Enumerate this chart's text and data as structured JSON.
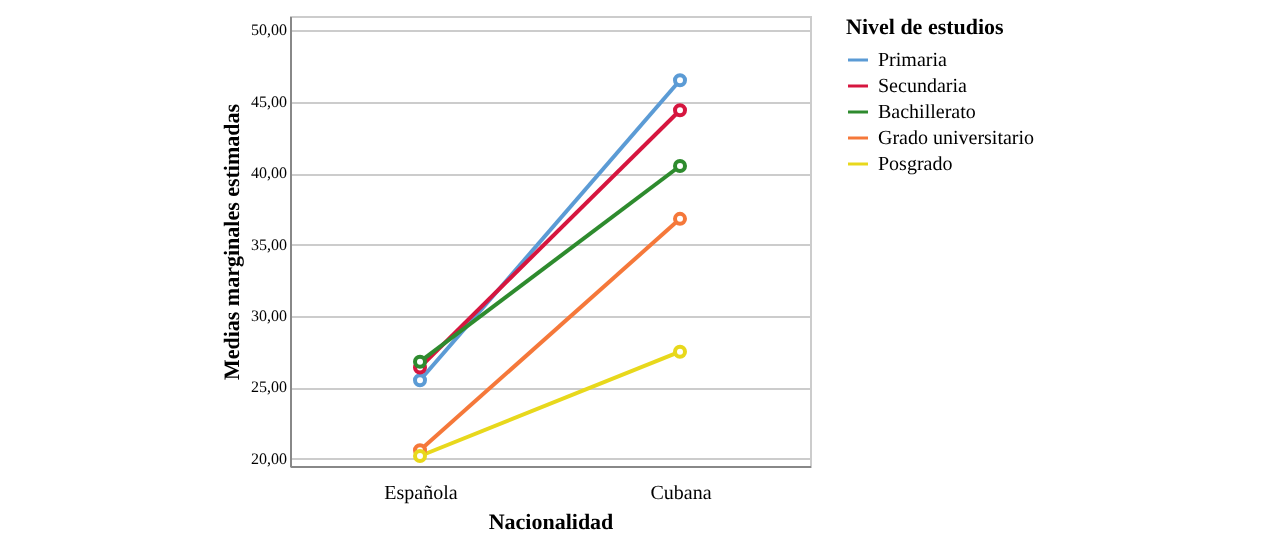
{
  "chart_data": {
    "type": "line",
    "xlabel": "Nacionalidad",
    "ylabel": "Medias marginales estimadas",
    "legend_title": "Nivel de estudios",
    "categories": [
      "Española",
      "Cubana"
    ],
    "series": [
      {
        "name": "Primaria",
        "color": "#5b9bd5",
        "values": [
          25.5,
          46.5
        ]
      },
      {
        "name": "Secundaria",
        "color": "#d6163f",
        "values": [
          26.4,
          44.4
        ]
      },
      {
        "name": "Bachillerato",
        "color": "#2e8b2e",
        "values": [
          26.8,
          40.5
        ]
      },
      {
        "name": "Grado universitario",
        "color": "#f5783a",
        "values": [
          20.6,
          36.8
        ]
      },
      {
        "name": "Posgrado",
        "color": "#e8d81c",
        "values": [
          20.2,
          27.5
        ]
      }
    ],
    "ylim": [
      19.5,
      51
    ],
    "yticks": [
      {
        "value": 20,
        "label": "20,00"
      },
      {
        "value": 25,
        "label": "25,00"
      },
      {
        "value": 30,
        "label": "30,00"
      },
      {
        "value": 35,
        "label": "35,00"
      },
      {
        "value": 40,
        "label": "40,00"
      },
      {
        "value": 45,
        "label": "45,00"
      },
      {
        "value": 50,
        "label": "50,00"
      }
    ],
    "grid": "y",
    "legend": "top right",
    "marker": "circle",
    "line_style": "solid"
  }
}
